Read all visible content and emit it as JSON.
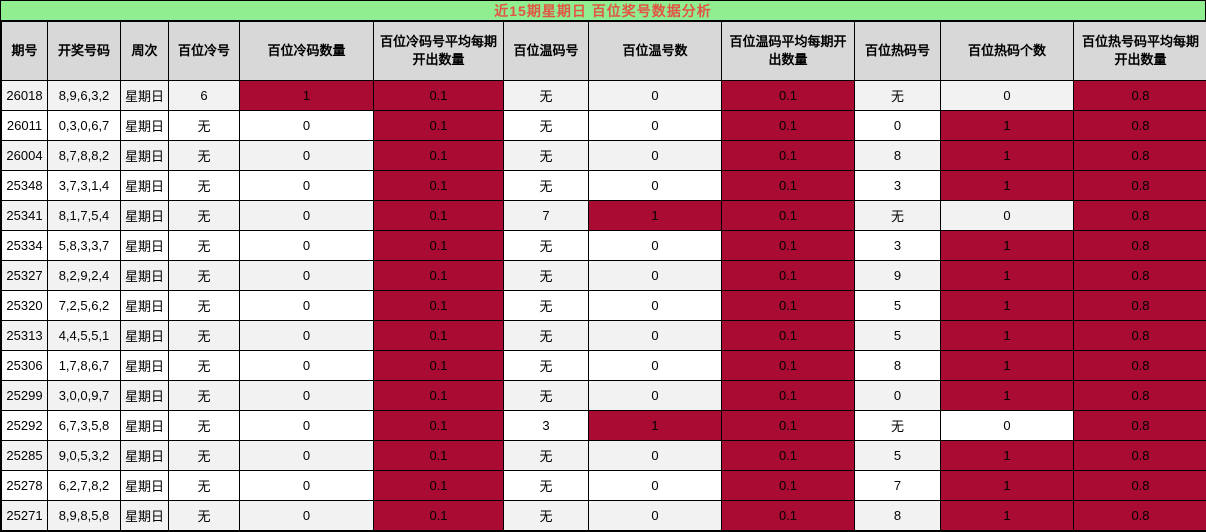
{
  "title": "近15期星期日 百位奖号数据分析",
  "colors": {
    "title_bar_bg": "#90ee90",
    "title_text": "#e25544",
    "header_bg": "#d8d8d8",
    "row_odd_bg": "#f2f2f2",
    "row_even_bg": "#ffffff",
    "highlight_bg": "#a90b33",
    "border": "#000000"
  },
  "table": {
    "columns": [
      "期号",
      "开奖号码",
      "周次",
      "百位冷号",
      "百位冷码数量",
      "百位冷码号平均每期开出数量",
      "百位温码号",
      "百位温号数",
      "百位温码平均每期开出数量",
      "百位热码号",
      "百位热码个数",
      "百位热号码平均每期开出数量"
    ],
    "rows": [
      [
        "26018",
        "8,9,6,3,2",
        "星期日",
        "6",
        "1",
        "0.1",
        "无",
        "0",
        "0.1",
        "无",
        "0",
        "0.8"
      ],
      [
        "26011",
        "0,3,0,6,7",
        "星期日",
        "无",
        "0",
        "0.1",
        "无",
        "0",
        "0.1",
        "0",
        "1",
        "0.8"
      ],
      [
        "26004",
        "8,7,8,8,2",
        "星期日",
        "无",
        "0",
        "0.1",
        "无",
        "0",
        "0.1",
        "8",
        "1",
        "0.8"
      ],
      [
        "25348",
        "3,7,3,1,4",
        "星期日",
        "无",
        "0",
        "0.1",
        "无",
        "0",
        "0.1",
        "3",
        "1",
        "0.8"
      ],
      [
        "25341",
        "8,1,7,5,4",
        "星期日",
        "无",
        "0",
        "0.1",
        "7",
        "1",
        "0.1",
        "无",
        "0",
        "0.8"
      ],
      [
        "25334",
        "5,8,3,3,7",
        "星期日",
        "无",
        "0",
        "0.1",
        "无",
        "0",
        "0.1",
        "3",
        "1",
        "0.8"
      ],
      [
        "25327",
        "8,2,9,2,4",
        "星期日",
        "无",
        "0",
        "0.1",
        "无",
        "0",
        "0.1",
        "9",
        "1",
        "0.8"
      ],
      [
        "25320",
        "7,2,5,6,2",
        "星期日",
        "无",
        "0",
        "0.1",
        "无",
        "0",
        "0.1",
        "5",
        "1",
        "0.8"
      ],
      [
        "25313",
        "4,4,5,5,1",
        "星期日",
        "无",
        "0",
        "0.1",
        "无",
        "0",
        "0.1",
        "5",
        "1",
        "0.8"
      ],
      [
        "25306",
        "1,7,8,6,7",
        "星期日",
        "无",
        "0",
        "0.1",
        "无",
        "0",
        "0.1",
        "8",
        "1",
        "0.8"
      ],
      [
        "25299",
        "3,0,0,9,7",
        "星期日",
        "无",
        "0",
        "0.1",
        "无",
        "0",
        "0.1",
        "0",
        "1",
        "0.8"
      ],
      [
        "25292",
        "6,7,3,5,8",
        "星期日",
        "无",
        "0",
        "0.1",
        "3",
        "1",
        "0.1",
        "无",
        "0",
        "0.8"
      ],
      [
        "25285",
        "9,0,5,3,2",
        "星期日",
        "无",
        "0",
        "0.1",
        "无",
        "0",
        "0.1",
        "5",
        "1",
        "0.8"
      ],
      [
        "25278",
        "6,2,7,8,2",
        "星期日",
        "无",
        "0",
        "0.1",
        "无",
        "0",
        "0.1",
        "7",
        "1",
        "0.8"
      ],
      [
        "25271",
        "8,9,8,5,8",
        "星期日",
        "无",
        "0",
        "0.1",
        "无",
        "0",
        "0.1",
        "8",
        "1",
        "0.8"
      ]
    ],
    "highlight_rules": {
      "always_red_columns": [
        5,
        8,
        11
      ],
      "red_if_value_is_one_columns": [
        4,
        7,
        10
      ]
    }
  }
}
